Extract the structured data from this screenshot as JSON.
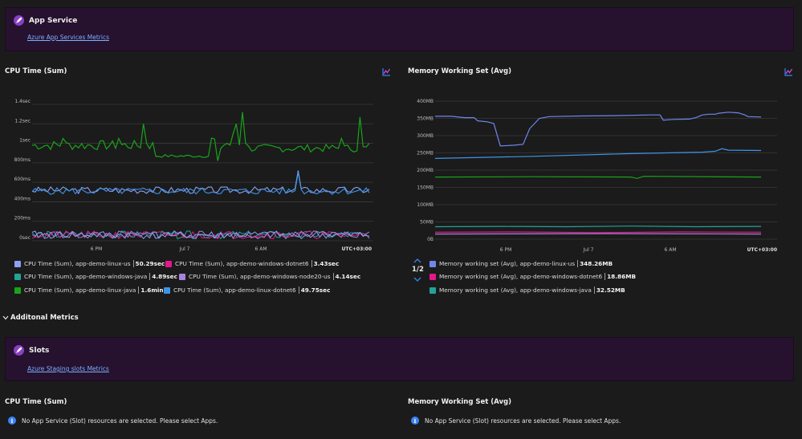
{
  "app_service": {
    "title": "App Service",
    "link": "Azure App Services Metrics"
  },
  "cpu_chart": {
    "title": "CPU Time (Sum)",
    "y_ticks": [
      "1.4sec",
      "1.2sec",
      "1sec",
      "800ms",
      "600ms",
      "400ms",
      "200ms",
      "0sec"
    ],
    "x_ticks": [
      "6 PM",
      "Jul 7",
      "6 AM"
    ],
    "timezone": "UTC+03:00",
    "legend": [
      {
        "label": "CPU Time (Sum), app-demo-linux-us",
        "value": "50.29sec",
        "color": "#8aa1f5"
      },
      {
        "label": "CPU Time (Sum), app-demo-windows-dotnet6",
        "value": "3.43sec",
        "color": "#e3178e"
      },
      {
        "label": "CPU Time (Sum), app-demo-windows-java",
        "value": "4.89sec",
        "color": "#22a39a"
      },
      {
        "label": "CPU Time (Sum), app-demo-windows-node20-us",
        "value": "4.14sec",
        "color": "#a784d9"
      },
      {
        "label": "CPU Time (Sum), app-demo-linux-java",
        "value": "1.6min",
        "color": "#1aa31a"
      },
      {
        "label": "CPU Time (Sum), app-demo-linux-dotnet6",
        "value": "49.75sec",
        "color": "#3d95e8"
      }
    ]
  },
  "mem_chart": {
    "title": "Memory Working Set (Avg)",
    "y_ticks": [
      "400MB",
      "350MB",
      "300MB",
      "250MB",
      "200MB",
      "150MB",
      "100MB",
      "50MB",
      "0B"
    ],
    "x_ticks": [
      "6 PM",
      "Jul 7",
      "6 AM"
    ],
    "timezone": "UTC+03:00",
    "pager": "1/2",
    "legend": [
      {
        "label": "Memory working set (Avg), app-demo-linux-us",
        "value": "348.26MB",
        "color": "#6f86ee"
      },
      {
        "label": "Memory working set (Avg), app-demo-windows-dotnet6",
        "value": "18.86MB",
        "color": "#e3178e"
      },
      {
        "label": "Memory working set (Avg), app-demo-windows-java",
        "value": "32.52MB",
        "color": "#22a39a"
      }
    ]
  },
  "additional": {
    "label": "Additonal Metrics"
  },
  "slots": {
    "title": "Slots",
    "link": "Azure Staging slots Metrics"
  },
  "slot_cpu": {
    "title": "CPU Time (Sum)",
    "message": "No App Service (Slot) resources are selected. Please select Apps."
  },
  "slot_mem": {
    "title": "Memory Working Set (Avg)",
    "message": "No App Service (Slot) resources are selected. Please select Apps."
  },
  "colors": {
    "banner_bg": "#26112e",
    "link": "#7db0ff",
    "accent": "#8a3fc3"
  }
}
